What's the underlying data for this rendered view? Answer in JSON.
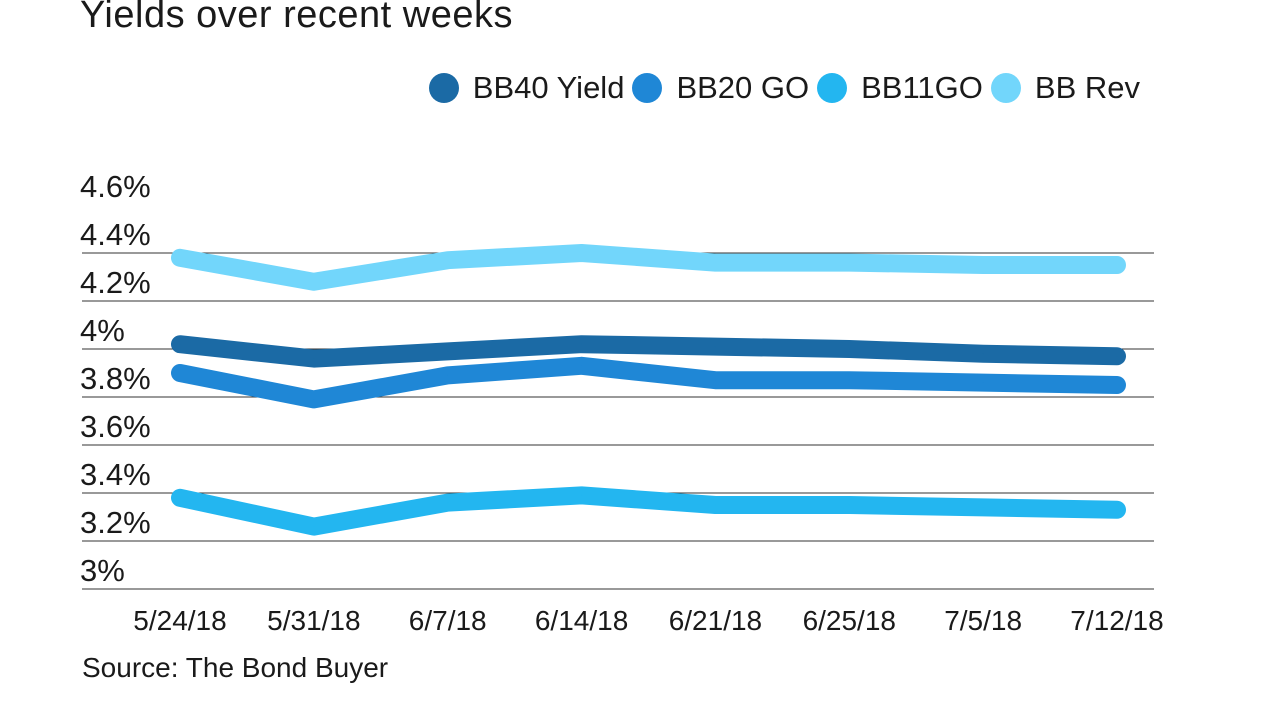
{
  "chart_data": {
    "type": "line",
    "title": "Yields over recent weeks",
    "categories": [
      "5/24/18",
      "5/31/18",
      "6/7/18",
      "6/14/18",
      "6/21/18",
      "6/25/18",
      "7/5/18",
      "7/12/18"
    ],
    "series": [
      {
        "name": "BB40 Yield",
        "color": "#1b6aa5",
        "values": [
          4.02,
          3.96,
          3.99,
          4.02,
          4.01,
          4.0,
          3.98,
          3.97
        ]
      },
      {
        "name": "BB20 GO",
        "color": "#1f87d6",
        "values": [
          3.9,
          3.79,
          3.89,
          3.93,
          3.87,
          3.87,
          3.86,
          3.85
        ]
      },
      {
        "name": "BB11GO",
        "color": "#23b6f0",
        "values": [
          3.38,
          3.26,
          3.36,
          3.39,
          3.35,
          3.35,
          3.34,
          3.33
        ]
      },
      {
        "name": "BB Rev",
        "color": "#72d6fb",
        "values": [
          4.38,
          4.28,
          4.37,
          4.4,
          4.36,
          4.36,
          4.35,
          4.35
        ]
      }
    ],
    "y_ticks": [
      "4.6%",
      "4.4%",
      "4.2%",
      "4%",
      "3.8%",
      "3.6%",
      "3.4%",
      "3.2%",
      "3%"
    ],
    "y_tick_values": [
      4.6,
      4.4,
      4.2,
      4.0,
      3.8,
      3.6,
      3.4,
      3.2,
      3.0
    ],
    "ylim": [
      3.0,
      4.6
    ],
    "xlabel": "",
    "ylabel": "",
    "legend": "top-right",
    "grid": true,
    "source": "Source: The Bond Buyer"
  }
}
